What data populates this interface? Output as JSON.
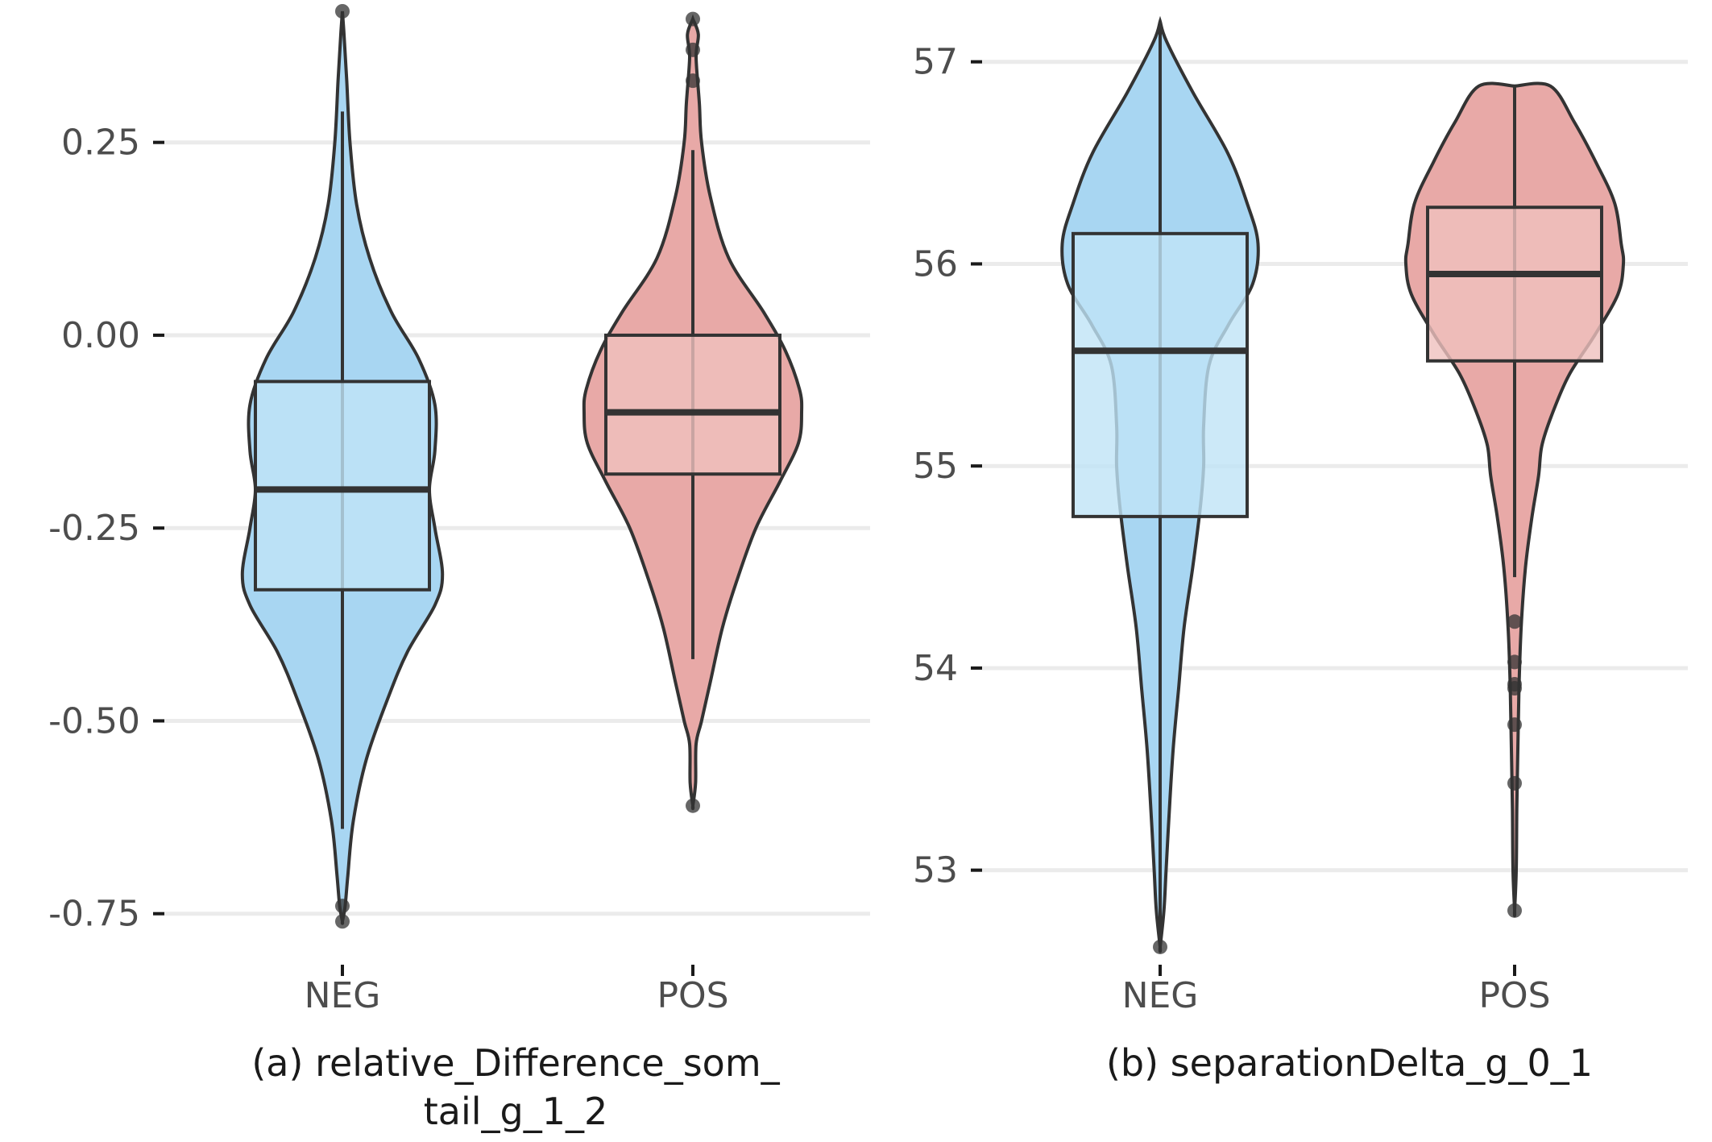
{
  "colors": {
    "NEG": "#a8d6f2",
    "POS": "#e8a9a7",
    "NEG_box": "#bfe3f6",
    "POS_box": "#efc0be"
  },
  "chart_data": [
    {
      "type": "violin",
      "caption": [
        "(a) relative_Difference_som_",
        "tail_g_1_2"
      ],
      "categories": [
        "NEG",
        "POS"
      ],
      "ylim": [
        -0.79,
        0.42
      ],
      "yticks": [
        0.25,
        0.0,
        -0.25,
        -0.5,
        -0.75
      ],
      "ytick_labels": [
        "0.25",
        "0.00",
        "-0.25",
        "-0.50",
        "-0.75"
      ],
      "grid": true,
      "series": [
        {
          "category": "NEG",
          "box": {
            "lower_whisker": -0.64,
            "q1": -0.33,
            "median": -0.2,
            "q3": -0.06,
            "upper_whisker": 0.29
          },
          "outliers": [
            0.42,
            -0.74,
            -0.76
          ],
          "density": [
            [
              0.42,
              0.0
            ],
            [
              0.39,
              0.015
            ],
            [
              0.33,
              0.04
            ],
            [
              0.25,
              0.07
            ],
            [
              0.17,
              0.13
            ],
            [
              0.1,
              0.25
            ],
            [
              0.03,
              0.45
            ],
            [
              -0.03,
              0.7
            ],
            [
              -0.09,
              0.85
            ],
            [
              -0.15,
              0.85
            ],
            [
              -0.2,
              0.8
            ],
            [
              -0.25,
              0.85
            ],
            [
              -0.31,
              0.92
            ],
            [
              -0.35,
              0.85
            ],
            [
              -0.41,
              0.6
            ],
            [
              -0.47,
              0.42
            ],
            [
              -0.55,
              0.22
            ],
            [
              -0.63,
              0.1
            ],
            [
              -0.7,
              0.05
            ],
            [
              -0.74,
              0.025
            ],
            [
              -0.76,
              0.0
            ]
          ]
        },
        {
          "category": "POS",
          "box": {
            "lower_whisker": -0.42,
            "q1": -0.18,
            "median": -0.1,
            "q3": 0.0,
            "upper_whisker": 0.24
          },
          "outliers": [
            0.41,
            0.37,
            0.33,
            -0.61
          ],
          "density": [
            [
              0.41,
              0.0
            ],
            [
              0.39,
              0.05
            ],
            [
              0.36,
              0.03
            ],
            [
              0.3,
              0.06
            ],
            [
              0.25,
              0.08
            ],
            [
              0.18,
              0.16
            ],
            [
              0.1,
              0.33
            ],
            [
              0.03,
              0.65
            ],
            [
              -0.02,
              0.85
            ],
            [
              -0.07,
              0.98
            ],
            [
              -0.1,
              1.0
            ],
            [
              -0.14,
              0.97
            ],
            [
              -0.19,
              0.8
            ],
            [
              -0.25,
              0.58
            ],
            [
              -0.32,
              0.4
            ],
            [
              -0.38,
              0.27
            ],
            [
              -0.45,
              0.16
            ],
            [
              -0.5,
              0.08
            ],
            [
              -0.53,
              0.03
            ],
            [
              -0.58,
              0.025
            ],
            [
              -0.61,
              0.0
            ]
          ]
        }
      ]
    },
    {
      "type": "violin",
      "caption": [
        "(b) separationDelta_g_0_1"
      ],
      "categories": [
        "NEG",
        "POS"
      ],
      "ylim": [
        52.6,
        57.25
      ],
      "yticks": [
        57,
        56,
        55,
        54,
        53
      ],
      "ytick_labels": [
        "57",
        "56",
        "55",
        "54",
        "53"
      ],
      "grid": true,
      "series": [
        {
          "category": "NEG",
          "box": {
            "lower_whisker": 52.62,
            "q1": 54.75,
            "median": 55.57,
            "q3": 56.15,
            "upper_whisker": 57.2
          },
          "outliers": [
            52.62
          ],
          "density": [
            [
              57.2,
              0.0
            ],
            [
              57.1,
              0.06
            ],
            [
              56.85,
              0.3
            ],
            [
              56.55,
              0.62
            ],
            [
              56.3,
              0.8
            ],
            [
              56.1,
              0.9
            ],
            [
              55.9,
              0.85
            ],
            [
              55.7,
              0.63
            ],
            [
              55.5,
              0.45
            ],
            [
              55.2,
              0.4
            ],
            [
              55.0,
              0.4
            ],
            [
              54.8,
              0.37
            ],
            [
              54.5,
              0.3
            ],
            [
              54.2,
              0.22
            ],
            [
              53.9,
              0.17
            ],
            [
              53.6,
              0.12
            ],
            [
              53.3,
              0.085
            ],
            [
              53.0,
              0.055
            ],
            [
              52.8,
              0.035
            ],
            [
              52.62,
              0.0
            ]
          ]
        },
        {
          "category": "POS",
          "box": {
            "lower_whisker": 54.45,
            "q1": 55.52,
            "median": 55.95,
            "q3": 56.28,
            "upper_whisker": 56.88
          },
          "outliers": [
            54.23,
            54.03,
            53.92,
            53.9,
            53.72,
            53.43,
            52.8
          ],
          "density": [
            [
              56.88,
              0.0
            ],
            [
              56.88,
              0.33
            ],
            [
              56.7,
              0.55
            ],
            [
              56.5,
              0.75
            ],
            [
              56.3,
              0.92
            ],
            [
              56.1,
              0.98
            ],
            [
              56.0,
              1.0
            ],
            [
              55.85,
              0.95
            ],
            [
              55.65,
              0.74
            ],
            [
              55.45,
              0.5
            ],
            [
              55.25,
              0.34
            ],
            [
              55.1,
              0.25
            ],
            [
              54.95,
              0.22
            ],
            [
              54.75,
              0.16
            ],
            [
              54.5,
              0.1
            ],
            [
              54.2,
              0.06
            ],
            [
              53.9,
              0.04
            ],
            [
              53.6,
              0.03
            ],
            [
              53.3,
              0.02
            ],
            [
              53.0,
              0.015
            ],
            [
              52.8,
              0.0
            ]
          ]
        }
      ]
    }
  ]
}
